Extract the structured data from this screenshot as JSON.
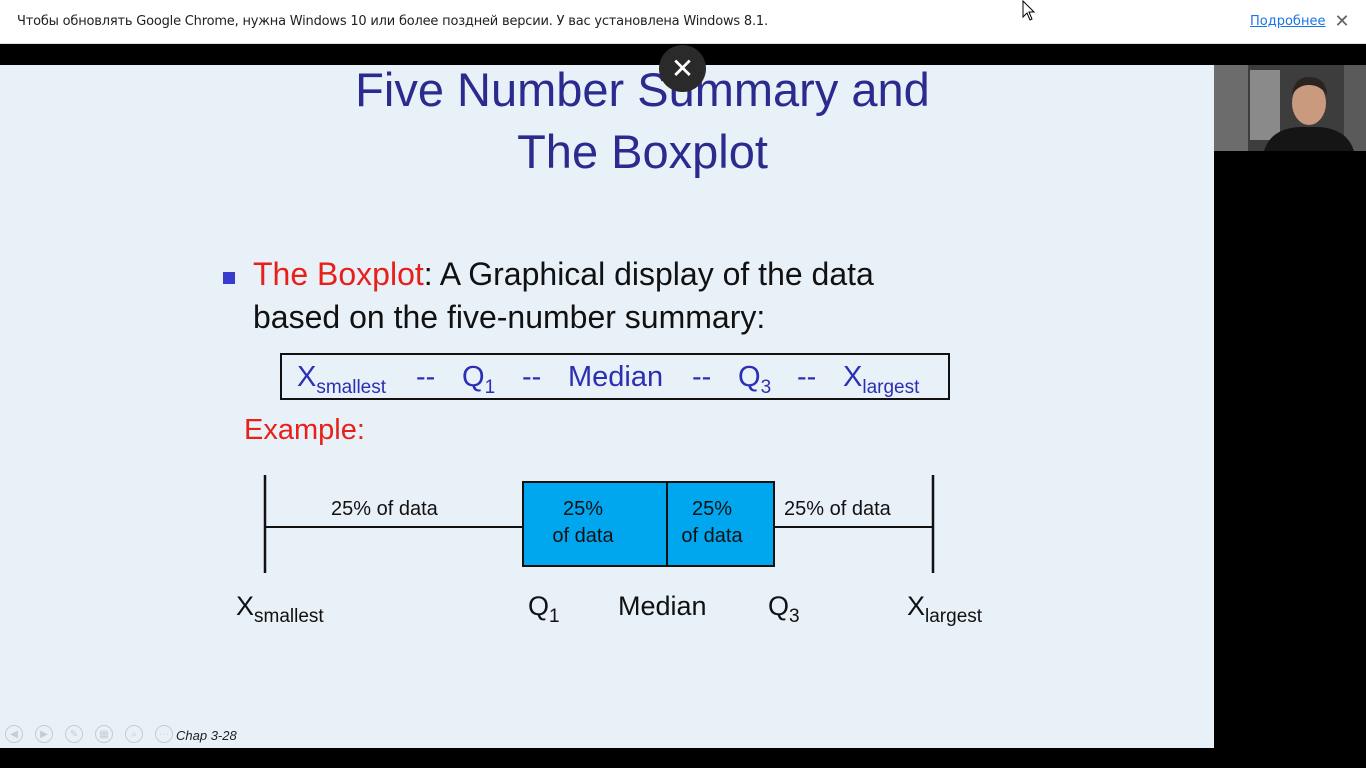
{
  "infobar": {
    "message": "Чтобы обновлять Google Chrome, нужна Windows 10 или более поздней версии. У вас установлена Windows 8.1.",
    "more_link": "Подробнее",
    "close_icon": "✕"
  },
  "overlay": {
    "close_icon": "✕"
  },
  "slide": {
    "title_line1": "Five Number Summary and",
    "title_line2": "The Boxplot",
    "bullet_red": "The Boxplot",
    "bullet_rest": ": A Graphical display of the data",
    "bullet_line2": "based on the five-number summary:",
    "summary": {
      "x": "X",
      "smallest": "smallest",
      "dash1": "--",
      "q": "Q",
      "q1_sub": "1",
      "dash2": "--",
      "median": "Median",
      "dash3": "--",
      "q3_sub": "3",
      "dash4": "--",
      "largest": "largest"
    },
    "example": "Example:",
    "boxplot": {
      "left_whisker": "25% of data",
      "box_left_l1": "25%",
      "box_left_l2": "of data",
      "box_right_l1": "25%",
      "box_right_l2": "of data",
      "right_whisker": "25% of data",
      "box_color": "#00a7ef"
    },
    "axis": {
      "x": "X",
      "smallest": "smallest",
      "q": "Q",
      "q1_sub": "1",
      "median": "Median",
      "q3_sub": "3",
      "largest": "largest"
    },
    "footer": "Chap 3-28"
  },
  "controls": [
    "prev-icon",
    "next-icon",
    "pen-icon",
    "slides-icon",
    "zoom-icon",
    "more-icon"
  ]
}
